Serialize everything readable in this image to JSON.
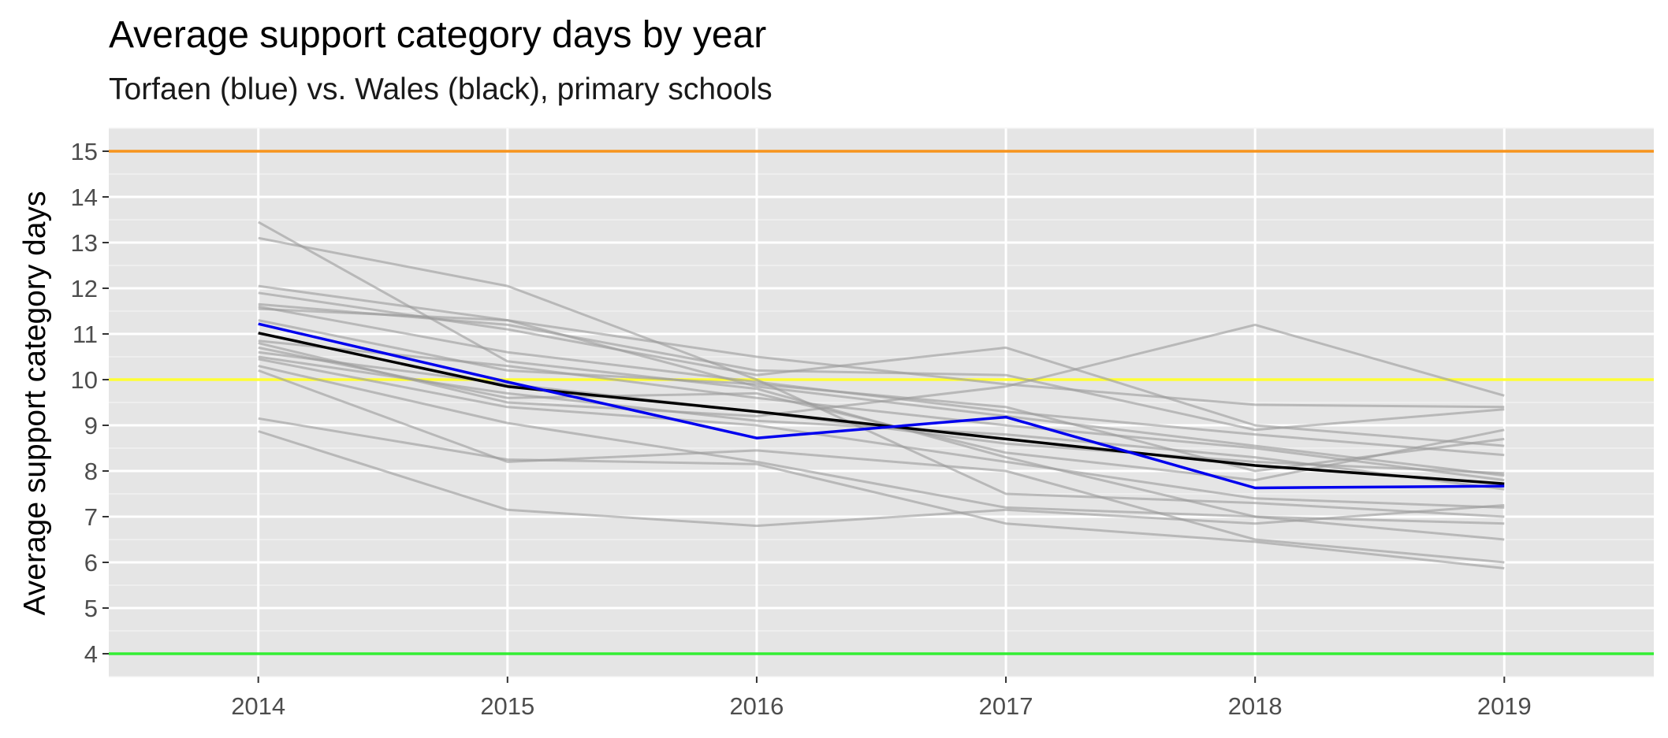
{
  "chart_data": {
    "type": "line",
    "title": "Average support category days by year",
    "subtitle": "Torfaen (blue) vs. Wales (black), primary schools",
    "xlabel": "",
    "ylabel": "Average support category days",
    "x": [
      2014,
      2015,
      2016,
      2017,
      2018,
      2019
    ],
    "x_tick_labels": [
      "2014",
      "2015",
      "2016",
      "2017",
      "2018",
      "2019"
    ],
    "y_ticks": [
      4,
      5,
      6,
      7,
      8,
      9,
      10,
      11,
      12,
      13,
      14,
      15
    ],
    "y_tick_labels": [
      "4",
      "5",
      "6",
      "7",
      "8",
      "9",
      "10",
      "11",
      "12",
      "13",
      "14",
      "15"
    ],
    "xlim": [
      2013.4,
      2019.6
    ],
    "ylim": [
      3.5,
      15.5
    ],
    "grid": true,
    "reference_lines": [
      {
        "y": 15,
        "color": "#f7941d"
      },
      {
        "y": 10,
        "color": "#ffff33"
      },
      {
        "y": 4,
        "color": "#33ee33"
      }
    ],
    "highlight_series": [
      {
        "values": [
          11.02,
          9.85,
          9.3,
          8.7,
          8.12,
          7.72
        ],
        "color": "#000000"
      },
      {
        "values": [
          11.22,
          9.95,
          8.72,
          9.18,
          7.63,
          7.67
        ],
        "color": "#0000ee"
      }
    ],
    "background_series_color": "#999999",
    "background_series": [
      [
        13.45,
        10.4,
        9.8,
        8.3,
        7.0,
        6.5
      ],
      [
        13.1,
        12.05,
        10.0,
        7.5,
        7.3,
        7.0
      ],
      [
        12.05,
        11.3,
        10.5,
        9.9,
        9.45,
        9.4
      ],
      [
        11.9,
        11.1,
        10.1,
        10.7,
        9.0,
        8.55
      ],
      [
        11.65,
        11.2,
        10.2,
        10.1,
        8.9,
        9.35
      ],
      [
        11.55,
        11.3,
        9.85,
        9.2,
        8.55,
        7.9
      ],
      [
        11.6,
        10.6,
        9.95,
        9.3,
        8.8,
        8.35
      ],
      [
        10.85,
        10.3,
        9.6,
        9.0,
        8.5,
        7.8
      ],
      [
        10.8,
        9.5,
        9.2,
        9.85,
        11.2,
        9.65
      ],
      [
        10.7,
        9.6,
        9.7,
        8.4,
        7.8,
        8.9
      ],
      [
        10.6,
        9.9,
        9.3,
        8.6,
        8.2,
        7.95
      ],
      [
        10.45,
        9.4,
        9.0,
        8.2,
        7.4,
        7.2
      ],
      [
        10.3,
        9.05,
        8.2,
        7.2,
        7.0,
        6.85
      ],
      [
        10.2,
        8.2,
        8.45,
        8.0,
        6.5,
        6.0
      ],
      [
        9.15,
        8.25,
        8.15,
        6.85,
        6.45,
        5.87
      ],
      [
        8.87,
        7.15,
        6.8,
        7.15,
        6.85,
        7.25
      ],
      [
        10.5,
        9.7,
        9.1,
        8.8,
        8.3,
        7.6
      ],
      [
        11.3,
        10.2,
        9.9,
        9.4,
        8.0,
        8.7
      ]
    ]
  }
}
